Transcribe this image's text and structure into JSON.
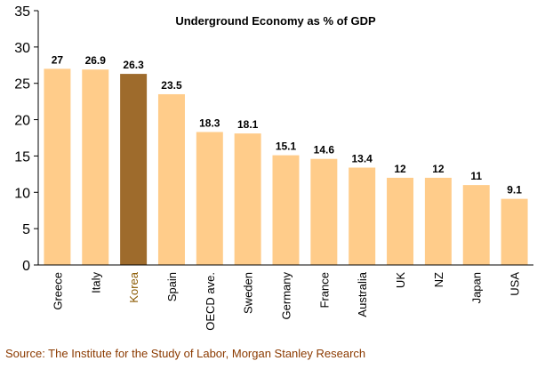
{
  "chart_data": {
    "type": "bar",
    "title": "Underground Economy as % of GDP",
    "xlabel": "",
    "ylabel": "",
    "ylim": [
      0,
      35
    ],
    "yticks": [
      0,
      5,
      10,
      15,
      20,
      25,
      30,
      35
    ],
    "grid": false,
    "categories": [
      "Greece",
      "Italy",
      "Korea",
      "Spain",
      "OECD ave.",
      "Sweden",
      "Germany",
      "France",
      "Australia",
      "UK",
      "NZ",
      "Japan",
      "USA"
    ],
    "values": [
      27,
      26.9,
      26.3,
      23.5,
      18.3,
      18.1,
      15.1,
      14.6,
      13.4,
      12,
      12,
      11,
      9.1
    ],
    "value_labels": [
      "27",
      "26.9",
      "26.3",
      "23.5",
      "18.3",
      "18.1",
      "15.1",
      "14.6",
      "13.4",
      "12",
      "12",
      "11",
      "9.1"
    ],
    "highlight_category": "Korea",
    "colors": {
      "bar": "#ffcc8a",
      "highlight": "#9e6b2c",
      "axis": "#000000",
      "category_label": "#000000",
      "highlight_label": "#8b5a00"
    }
  },
  "source": "Source: The Institute for the Study of Labor, Morgan Stanley Research"
}
